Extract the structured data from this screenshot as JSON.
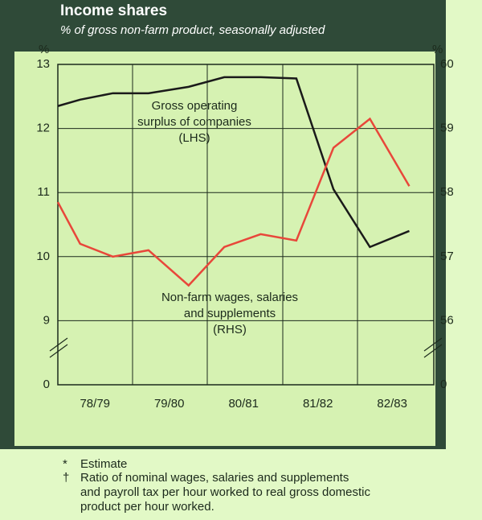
{
  "chart_data": {
    "type": "line",
    "title": "Income shares",
    "subtitle": "% of gross non-farm product, seasonally adjusted",
    "y_label": "%",
    "y2_label": "%",
    "annotations": [
      "Gross operating",
      "surplus of companies",
      "(LHS)",
      "Non-farm wages, salaries",
      "and supplements",
      "(RHS)"
    ],
    "x": [
      0,
      0.3,
      0.74,
      1.22,
      1.76,
      2.24,
      2.73,
      3.21,
      3.71,
      4.2,
      4.73
    ],
    "xlim": [
      0,
      5.06
    ],
    "xticks": [
      {
        "value": 0.5,
        "label": "78/79"
      },
      {
        "value": 1.5,
        "label": "79/80"
      },
      {
        "value": 2.5,
        "label": "80/81"
      },
      {
        "value": 3.5,
        "label": "81/82"
      },
      {
        "value": 4.5,
        "label": "82/83"
      }
    ],
    "ylim": [
      0,
      13
    ],
    "ybreak": [
      0,
      8
    ],
    "yticks": [
      0,
      9,
      10,
      11,
      12,
      13
    ],
    "y2lim": [
      0,
      60
    ],
    "y2break": [
      0,
      55
    ],
    "y2ticks": [
      0,
      56,
      57,
      58,
      59,
      60
    ],
    "grid": true,
    "series": [
      {
        "name": "Gross operating surplus of companies (LHS)",
        "color": "#1a1a1a",
        "values": [
          12.35,
          12.45,
          12.55,
          12.55,
          12.65,
          12.8,
          12.8,
          12.78,
          11.05,
          10.15,
          10.4
        ]
      },
      {
        "name": "Non-farm wages, salaries and supplements (RHS)",
        "color": "#e8473a",
        "axis": "y2",
        "values": [
          57.85,
          57.2,
          57.0,
          57.1,
          56.55,
          57.15,
          57.35,
          57.25,
          58.7,
          59.15,
          58.1
        ]
      }
    ]
  },
  "footnotes": [
    "Estimate",
    "Ratio of nominal wages, salaries and supplements",
    "and payroll tax per hour worked to real gross domestic",
    "product per hour worked."
  ]
}
